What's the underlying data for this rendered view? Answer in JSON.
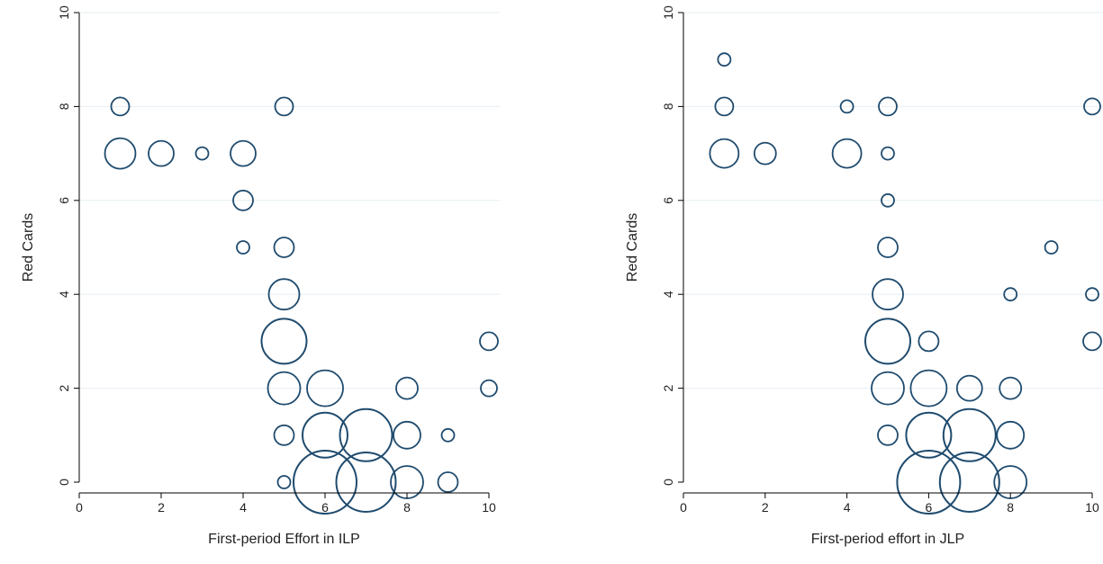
{
  "chart_data": [
    {
      "type": "scatter",
      "xlabel": "First-period Effort in ILP",
      "ylabel": "Red Cards",
      "xlim": [
        0,
        10
      ],
      "ylim": [
        0,
        10
      ],
      "xticks": [
        "0",
        "2",
        "4",
        "6",
        "8",
        "10"
      ],
      "yticks": [
        "0",
        "2",
        "4",
        "6",
        "8",
        "10"
      ],
      "grid": true,
      "points": [
        {
          "x": 1,
          "y": 8,
          "r": 10
        },
        {
          "x": 5,
          "y": 8,
          "r": 10
        },
        {
          "x": 1,
          "y": 7,
          "r": 17
        },
        {
          "x": 2,
          "y": 7,
          "r": 14
        },
        {
          "x": 3,
          "y": 7,
          "r": 7
        },
        {
          "x": 4,
          "y": 7,
          "r": 14
        },
        {
          "x": 4,
          "y": 6,
          "r": 11
        },
        {
          "x": 4,
          "y": 5,
          "r": 7
        },
        {
          "x": 5,
          "y": 5,
          "r": 11
        },
        {
          "x": 5,
          "y": 4,
          "r": 17
        },
        {
          "x": 5,
          "y": 3,
          "r": 25
        },
        {
          "x": 10,
          "y": 3,
          "r": 10
        },
        {
          "x": 5,
          "y": 2,
          "r": 18
        },
        {
          "x": 6,
          "y": 2,
          "r": 20
        },
        {
          "x": 8,
          "y": 2,
          "r": 12
        },
        {
          "x": 10,
          "y": 2,
          "r": 9
        },
        {
          "x": 5,
          "y": 1,
          "r": 11
        },
        {
          "x": 6,
          "y": 1,
          "r": 25
        },
        {
          "x": 7,
          "y": 1,
          "r": 29
        },
        {
          "x": 8,
          "y": 1,
          "r": 15
        },
        {
          "x": 9,
          "y": 1,
          "r": 7
        },
        {
          "x": 5,
          "y": 0,
          "r": 7
        },
        {
          "x": 6,
          "y": 0,
          "r": 35
        },
        {
          "x": 7,
          "y": 0,
          "r": 33
        },
        {
          "x": 8,
          "y": 0,
          "r": 18
        },
        {
          "x": 9,
          "y": 0,
          "r": 11
        }
      ]
    },
    {
      "type": "scatter",
      "xlabel": "First-period effort in JLP",
      "ylabel": "Red Cards",
      "xlim": [
        0,
        10
      ],
      "ylim": [
        0,
        10
      ],
      "xticks": [
        "0",
        "2",
        "4",
        "6",
        "8",
        "10"
      ],
      "yticks": [
        "0",
        "2",
        "4",
        "6",
        "8",
        "10"
      ],
      "grid": true,
      "points": [
        {
          "x": 1,
          "y": 9,
          "r": 7
        },
        {
          "x": 1,
          "y": 8,
          "r": 10
        },
        {
          "x": 4,
          "y": 8,
          "r": 7
        },
        {
          "x": 5,
          "y": 8,
          "r": 10
        },
        {
          "x": 10,
          "y": 8,
          "r": 9
        },
        {
          "x": 1,
          "y": 7,
          "r": 16
        },
        {
          "x": 2,
          "y": 7,
          "r": 12
        },
        {
          "x": 4,
          "y": 7,
          "r": 16
        },
        {
          "x": 5,
          "y": 7,
          "r": 7
        },
        {
          "x": 5,
          "y": 6,
          "r": 7
        },
        {
          "x": 5,
          "y": 5,
          "r": 11
        },
        {
          "x": 9,
          "y": 5,
          "r": 7
        },
        {
          "x": 5,
          "y": 4,
          "r": 17
        },
        {
          "x": 8,
          "y": 4,
          "r": 7
        },
        {
          "x": 10,
          "y": 4,
          "r": 7
        },
        {
          "x": 5,
          "y": 3,
          "r": 25
        },
        {
          "x": 6,
          "y": 3,
          "r": 11
        },
        {
          "x": 10,
          "y": 3,
          "r": 10
        },
        {
          "x": 5,
          "y": 2,
          "r": 18
        },
        {
          "x": 6,
          "y": 2,
          "r": 20
        },
        {
          "x": 7,
          "y": 2,
          "r": 14
        },
        {
          "x": 8,
          "y": 2,
          "r": 12
        },
        {
          "x": 5,
          "y": 1,
          "r": 11
        },
        {
          "x": 6,
          "y": 1,
          "r": 25
        },
        {
          "x": 7,
          "y": 1,
          "r": 29
        },
        {
          "x": 8,
          "y": 1,
          "r": 15
        },
        {
          "x": 6,
          "y": 0,
          "r": 35
        },
        {
          "x": 7,
          "y": 0,
          "r": 33
        },
        {
          "x": 8,
          "y": 0,
          "r": 18
        }
      ]
    }
  ]
}
